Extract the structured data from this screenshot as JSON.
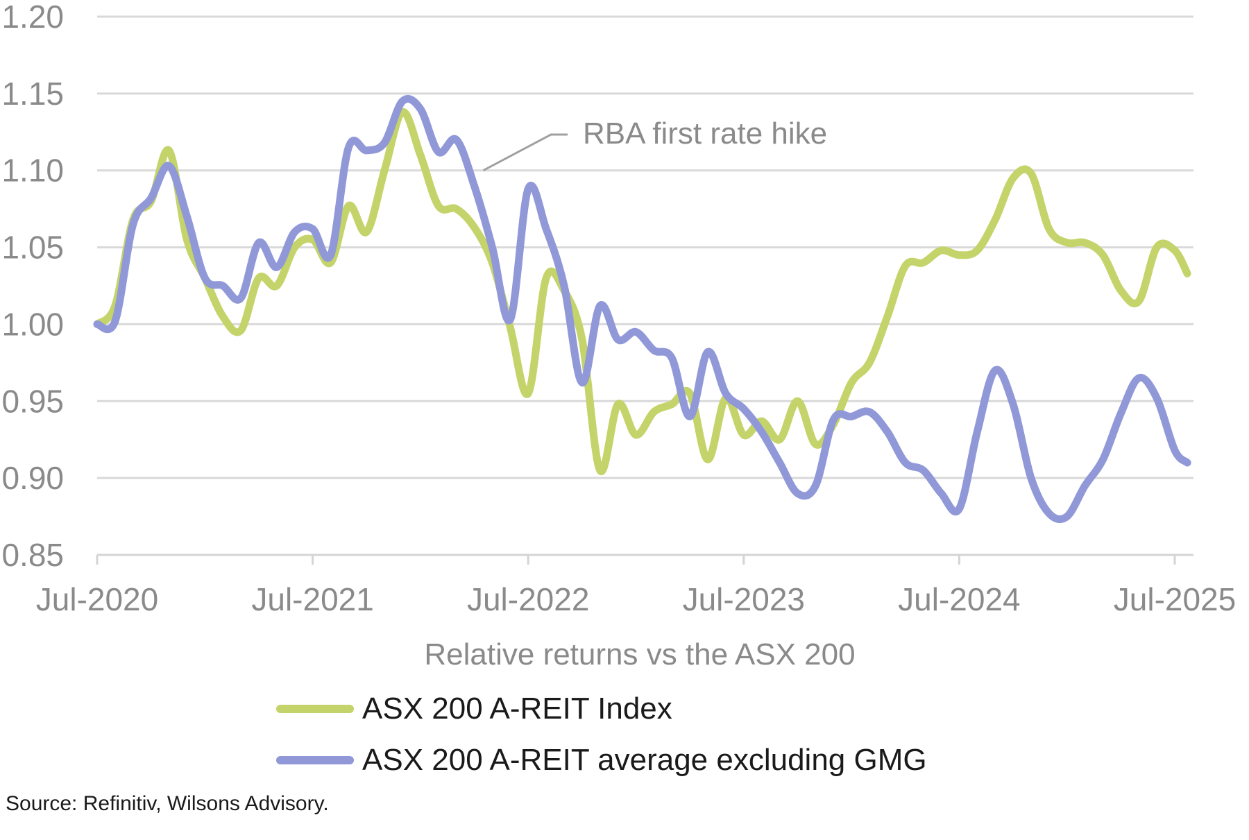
{
  "chart_data": {
    "type": "line",
    "xlabel": "Relative returns vs the ASX 200",
    "ylabel": "",
    "ylim": [
      0.85,
      1.2
    ],
    "yticks": [
      "1.20",
      "1.15",
      "1.10",
      "1.05",
      "1.00",
      "0.95",
      "0.90",
      "0.85"
    ],
    "xlim": [
      0,
      60
    ],
    "xticks": [
      {
        "x": 0,
        "label": "Jul-2020"
      },
      {
        "x": 12,
        "label": "Jul-2021"
      },
      {
        "x": 24,
        "label": "Jul-2022"
      },
      {
        "x": 36,
        "label": "Jul-2023"
      },
      {
        "x": 48,
        "label": "Jul-2024"
      },
      {
        "x": 60,
        "label": "Jul-2025"
      }
    ],
    "grid": true,
    "legend_position": "bottom",
    "annotation": {
      "text": "RBA first rate hike",
      "x": 21.5,
      "y": 1.1
    },
    "series": [
      {
        "name": "ASX 200 A-REIT Index",
        "color": "#c4d46a",
        "points": [
          [
            0,
            1.0
          ],
          [
            1,
            1.012
          ],
          [
            2,
            1.068
          ],
          [
            3,
            1.08
          ],
          [
            4,
            1.113
          ],
          [
            5,
            1.055
          ],
          [
            6,
            1.03
          ],
          [
            7,
            1.005
          ],
          [
            8,
            0.996
          ],
          [
            9,
            1.03
          ],
          [
            10,
            1.025
          ],
          [
            11,
            1.05
          ],
          [
            12,
            1.055
          ],
          [
            13,
            1.04
          ],
          [
            14,
            1.077
          ],
          [
            15,
            1.06
          ],
          [
            16,
            1.1
          ],
          [
            17,
            1.138
          ],
          [
            18,
            1.11
          ],
          [
            19,
            1.077
          ],
          [
            20,
            1.075
          ],
          [
            21,
            1.063
          ],
          [
            22,
            1.04
          ],
          [
            23,
            0.998
          ],
          [
            24,
            0.955
          ],
          [
            25,
            1.03
          ],
          [
            26,
            1.022
          ],
          [
            27,
            0.99
          ],
          [
            28,
            0.905
          ],
          [
            29,
            0.948
          ],
          [
            30,
            0.928
          ],
          [
            31,
            0.943
          ],
          [
            32,
            0.948
          ],
          [
            33,
            0.955
          ],
          [
            34,
            0.912
          ],
          [
            35,
            0.952
          ],
          [
            36,
            0.928
          ],
          [
            37,
            0.937
          ],
          [
            38,
            0.925
          ],
          [
            39,
            0.95
          ],
          [
            40,
            0.922
          ],
          [
            41,
            0.935
          ],
          [
            42,
            0.962
          ],
          [
            43,
            0.975
          ],
          [
            44,
            1.005
          ],
          [
            45,
            1.038
          ],
          [
            46,
            1.04
          ],
          [
            47,
            1.048
          ],
          [
            48,
            1.045
          ],
          [
            49,
            1.048
          ],
          [
            50,
            1.068
          ],
          [
            51,
            1.095
          ],
          [
            52,
            1.098
          ],
          [
            53,
            1.062
          ],
          [
            54,
            1.053
          ],
          [
            55,
            1.053
          ],
          [
            56,
            1.045
          ],
          [
            57,
            1.022
          ],
          [
            58,
            1.015
          ],
          [
            59,
            1.05
          ],
          [
            60,
            1.048
          ],
          [
            60.7,
            1.033
          ]
        ]
      },
      {
        "name": "ASX 200 A-REIT average excluding GMG",
        "color": "#9098d8",
        "points": [
          [
            0,
            1.0
          ],
          [
            1,
            1.002
          ],
          [
            2,
            1.065
          ],
          [
            3,
            1.082
          ],
          [
            4,
            1.103
          ],
          [
            5,
            1.07
          ],
          [
            6,
            1.03
          ],
          [
            7,
            1.025
          ],
          [
            8,
            1.017
          ],
          [
            9,
            1.053
          ],
          [
            10,
            1.037
          ],
          [
            11,
            1.06
          ],
          [
            12,
            1.062
          ],
          [
            13,
            1.045
          ],
          [
            14,
            1.115
          ],
          [
            15,
            1.113
          ],
          [
            16,
            1.118
          ],
          [
            17,
            1.145
          ],
          [
            18,
            1.14
          ],
          [
            19,
            1.112
          ],
          [
            20,
            1.12
          ],
          [
            21,
            1.09
          ],
          [
            22,
            1.05
          ],
          [
            23,
            1.003
          ],
          [
            24,
            1.088
          ],
          [
            25,
            1.062
          ],
          [
            26,
            1.025
          ],
          [
            27,
            0.962
          ],
          [
            28,
            1.012
          ],
          [
            29,
            0.99
          ],
          [
            30,
            0.995
          ],
          [
            31,
            0.983
          ],
          [
            32,
            0.978
          ],
          [
            33,
            0.94
          ],
          [
            34,
            0.982
          ],
          [
            35,
            0.955
          ],
          [
            36,
            0.945
          ],
          [
            37,
            0.93
          ],
          [
            38,
            0.91
          ],
          [
            39,
            0.89
          ],
          [
            40,
            0.895
          ],
          [
            41,
            0.938
          ],
          [
            42,
            0.94
          ],
          [
            43,
            0.943
          ],
          [
            44,
            0.93
          ],
          [
            45,
            0.91
          ],
          [
            46,
            0.905
          ],
          [
            47,
            0.89
          ],
          [
            48,
            0.88
          ],
          [
            49,
            0.93
          ],
          [
            50,
            0.97
          ],
          [
            51,
            0.948
          ],
          [
            52,
            0.9
          ],
          [
            53,
            0.877
          ],
          [
            54,
            0.875
          ],
          [
            55,
            0.895
          ],
          [
            56,
            0.912
          ],
          [
            57,
            0.942
          ],
          [
            58,
            0.965
          ],
          [
            59,
            0.952
          ],
          [
            60,
            0.918
          ],
          [
            60.7,
            0.91
          ]
        ]
      }
    ],
    "source": "Source: Refinitiv, Wilsons Advisory."
  }
}
